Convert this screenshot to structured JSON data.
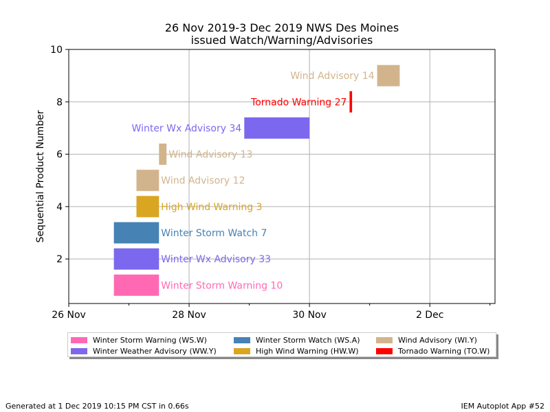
{
  "chart_data": {
    "type": "bar",
    "title": [
      "26 Nov 2019-3 Dec 2019 NWS Des Moines",
      "issued Watch/Warning/Advisories"
    ],
    "xlabel": "",
    "ylabel": "Sequential Product Number",
    "xlim": [
      "2019-11-26 00:00",
      "2019-12-03 02:00"
    ],
    "ylim": [
      0.3,
      10
    ],
    "x_ticks": [
      {
        "label": "26 Nov",
        "t": "2019-11-26 00:00"
      },
      {
        "label": "28 Nov",
        "t": "2019-11-28 00:00"
      },
      {
        "label": "30 Nov",
        "t": "2019-11-30 00:00"
      },
      {
        "label": "2 Dec",
        "t": "2019-12-02 00:00"
      }
    ],
    "x_minor_ticks": [
      "2019-11-27 00:00",
      "2019-11-29 00:00",
      "2019-12-01 00:00",
      "2019-12-03 00:00"
    ],
    "y_ticks": [
      2,
      4,
      6,
      8,
      10
    ],
    "grid": true,
    "series": [
      {
        "label": "Winter Storm Warning 10",
        "color": "#ff69b4",
        "y": 1,
        "start": "2019-11-26 18:00",
        "end": "2019-11-27 12:00",
        "label_side": "right"
      },
      {
        "label": "Winter Wx Advisory 33",
        "color": "#7b68ee",
        "y": 2,
        "start": "2019-11-26 18:00",
        "end": "2019-11-27 12:00",
        "label_side": "right"
      },
      {
        "label": "Winter Storm Watch 7",
        "color": "#4682b4",
        "y": 3,
        "start": "2019-11-26 18:00",
        "end": "2019-11-27 12:00",
        "label_side": "right"
      },
      {
        "label": "High Wind Warning 3",
        "color": "#daa520",
        "y": 4,
        "start": "2019-11-27 03:00",
        "end": "2019-11-27 12:00",
        "label_side": "right"
      },
      {
        "label": "Wind Advisory 12",
        "color": "#d2b48c",
        "y": 5,
        "start": "2019-11-27 03:00",
        "end": "2019-11-27 12:00",
        "label_side": "right"
      },
      {
        "label": "Wind Advisory 13",
        "color": "#d2b48c",
        "y": 6,
        "start": "2019-11-27 12:00",
        "end": "2019-11-27 15:00",
        "label_side": "right"
      },
      {
        "label": "Winter Wx Advisory 34",
        "color": "#7b68ee",
        "y": 7,
        "start": "2019-11-28 22:00",
        "end": "2019-11-30 00:00",
        "label_side": "left"
      },
      {
        "label": "Tornado Warning 27",
        "color": "#ff0000",
        "y": 8,
        "start": "2019-11-30 16:00",
        "end": "2019-11-30 17:00",
        "label_side": "left"
      },
      {
        "label": "Wind Advisory 14",
        "color": "#d2b48c",
        "y": 9,
        "start": "2019-12-01 03:00",
        "end": "2019-12-01 12:00",
        "label_side": "left"
      }
    ],
    "legend": {
      "placement": "bottom",
      "entries": [
        {
          "label": "Winter Storm Warning (WS.W)",
          "color": "#ff69b4"
        },
        {
          "label": "Winter Storm Watch (WS.A)",
          "color": "#4682b4"
        },
        {
          "label": "Wind Advisory (WI.Y)",
          "color": "#d2b48c"
        },
        {
          "label": "Winter Weather Advisory (WW.Y)",
          "color": "#7b68ee"
        },
        {
          "label": "High Wind Warning (HW.W)",
          "color": "#daa520"
        },
        {
          "label": "Tornado Warning (TO.W)",
          "color": "#ff0000"
        }
      ]
    }
  },
  "footer": {
    "left": "Generated at 1 Dec 2019 10:15 PM CST in 0.66s",
    "right": "IEM Autoplot App #52"
  }
}
